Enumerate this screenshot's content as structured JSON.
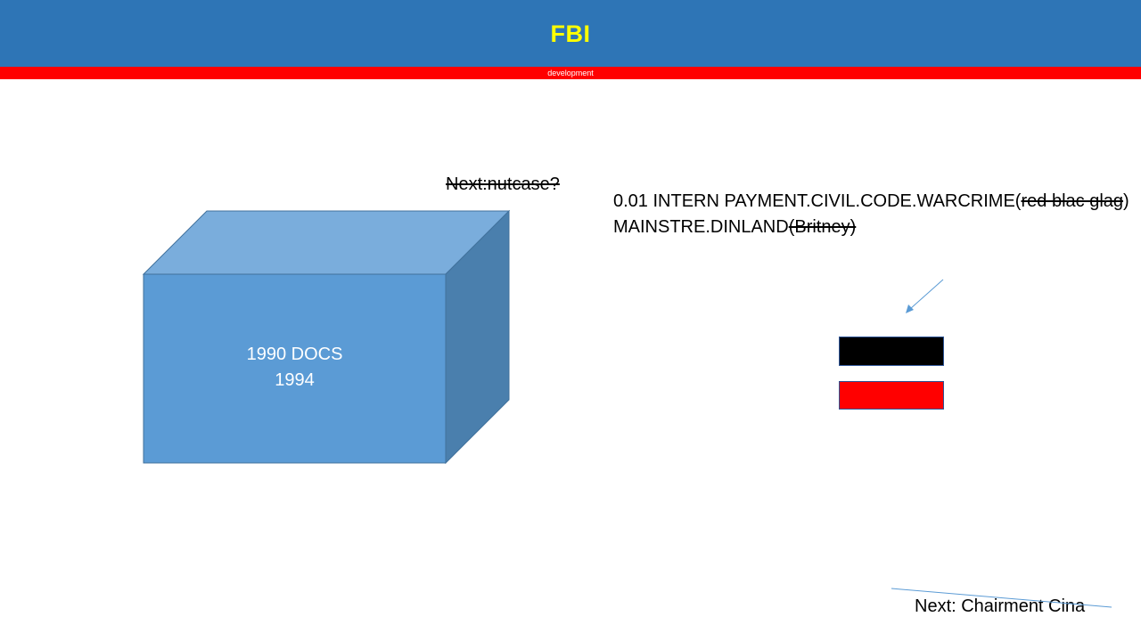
{
  "header": {
    "title": "FBI",
    "title_color": "#ffff00",
    "background_color": "#2e75b6"
  },
  "subheader": {
    "text": "development",
    "background_color": "#ff0000"
  },
  "cube": {
    "line1": "1990 DOCS",
    "line2": "1994",
    "front_color": "#5b9bd5",
    "top_color": "#7aaddc",
    "side_color": "#4a7fad"
  },
  "next_nutcase": "Next:nutcase?",
  "info": {
    "line1_prefix": "0.01 INTERN PAYMENT.CIVIL.CODE.WARCRIME(",
    "line1_strike": "red blac glag",
    "line1_suffix": ")",
    "line2_prefix": "MAINSTRE.DINLAND",
    "line2_strike": "(Britney)"
  },
  "arrow_icon": "arrow-down-left-icon",
  "flag_colors": [
    "#000000",
    "#ff0000"
  ],
  "footer_next": "Next: Chairment Cina"
}
